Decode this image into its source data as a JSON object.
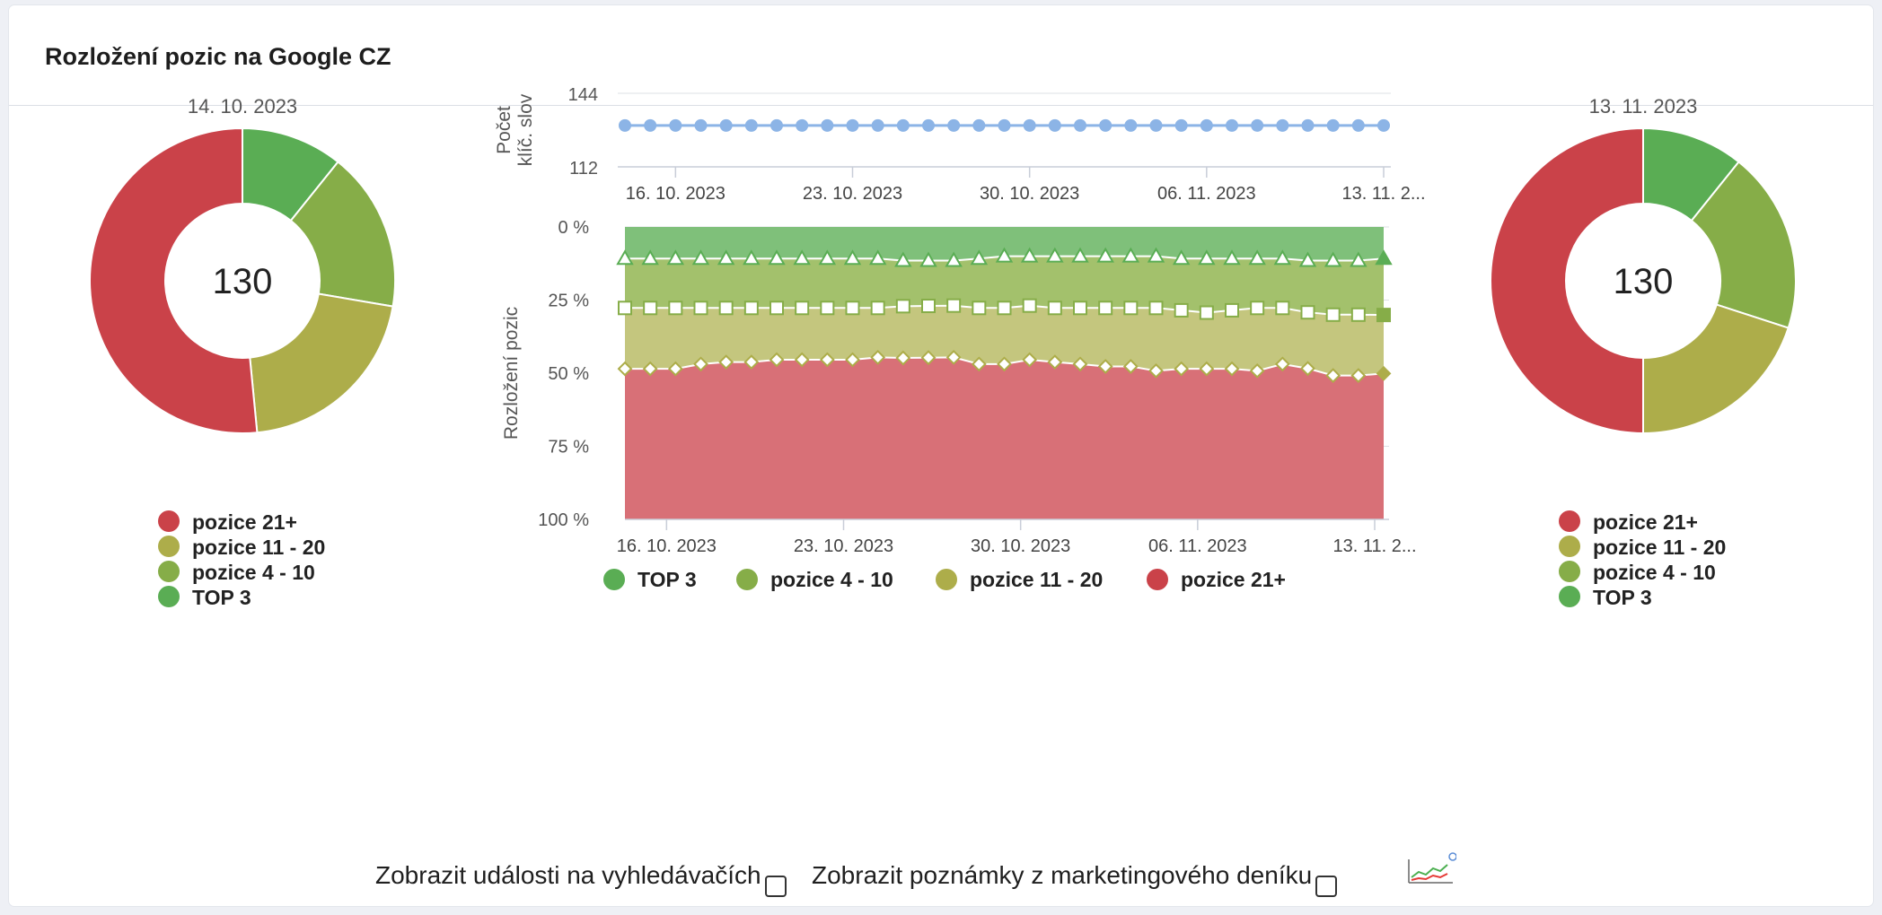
{
  "widget": {
    "title": "Rozložení pozic na Google CZ"
  },
  "colors": {
    "top3": "#5aad54",
    "pos4_10": "#86ad48",
    "pos11_20": "#adad4a",
    "pos21": "#ca4249",
    "keyword_line": "#8cb4e6",
    "area_top3": "#7fc07a",
    "area_4_10": "#a3c16c",
    "area_11_20": "#c4c67e",
    "area_21": "#d87077"
  },
  "chart_data": [
    {
      "type": "pie",
      "variant": "donut",
      "title": "14. 10. 2023",
      "center_label": "130",
      "slices": [
        {
          "name": "TOP 3",
          "value": 14
        },
        {
          "name": "pozice 4 - 10",
          "value": 22
        },
        {
          "name": "pozice 11 - 20",
          "value": 27
        },
        {
          "name": "pozice 21+",
          "value": 67
        }
      ],
      "legend": [
        "pozice 21+",
        "pozice 11 - 20",
        "pozice 4 - 10",
        "TOP 3"
      ]
    },
    {
      "type": "line",
      "title": "",
      "ylabel": "Počet klíč. slov",
      "ylim": [
        112,
        144
      ],
      "yticks": [
        "112",
        "144"
      ],
      "xticks": [
        "16. 10. 2023",
        "23. 10. 2023",
        "30. 10. 2023",
        "06. 11. 2023",
        "13. 11. 2..."
      ],
      "x_start_label": "14. 10. 2023",
      "series": [
        {
          "values": [
            130,
            130,
            130,
            130,
            130,
            130,
            130,
            130,
            130,
            130,
            130,
            130,
            130,
            130,
            130,
            130,
            130,
            130,
            130,
            130,
            130,
            130,
            130,
            130,
            130,
            130,
            130,
            130,
            130,
            130,
            130
          ]
        }
      ]
    },
    {
      "type": "area",
      "stacked": "percent",
      "title": "",
      "ylabel": "Rozložení pozic",
      "yticks": [
        "0 %",
        "25 %",
        "50 %",
        "75 %",
        "100 %"
      ],
      "xticks": [
        "16. 10. 2023",
        "23. 10. 2023",
        "30. 10. 2023",
        "06. 11. 2023",
        "13. 11. 2..."
      ],
      "legend_placement": "bottom",
      "series": [
        {
          "name": "TOP 3",
          "values": [
            10.8,
            10.8,
            10.8,
            10.8,
            10.8,
            10.8,
            10.8,
            10.8,
            10.8,
            10.8,
            10.8,
            11.5,
            11.5,
            11.5,
            10.8,
            10.0,
            10.0,
            10.0,
            10.0,
            10.0,
            10.0,
            10.0,
            10.8,
            10.8,
            10.8,
            10.8,
            10.8,
            11.5,
            11.5,
            11.5,
            10.8
          ]
        },
        {
          "name": "pozice 4 - 10",
          "values": [
            16.9,
            16.9,
            16.9,
            16.9,
            16.9,
            16.9,
            16.9,
            16.9,
            16.9,
            16.9,
            16.9,
            15.6,
            15.5,
            15.4,
            16.9,
            17.7,
            16.9,
            17.7,
            17.7,
            17.7,
            17.7,
            17.7,
            17.7,
            18.5,
            17.7,
            16.9,
            16.9,
            17.7,
            18.5,
            18.5,
            19.3
          ]
        },
        {
          "name": "pozice 11 - 20",
          "values": [
            20.8,
            20.8,
            20.8,
            19.2,
            18.5,
            18.5,
            17.7,
            17.7,
            17.7,
            17.7,
            16.9,
            17.7,
            17.7,
            17.7,
            19.2,
            19.2,
            18.5,
            18.5,
            19.2,
            20.0,
            20.0,
            21.5,
            20.0,
            19.2,
            20.0,
            21.5,
            19.2,
            19.2,
            20.8,
            20.8,
            20.0
          ]
        },
        {
          "name": "pozice 21+",
          "values": [
            51.5,
            51.5,
            51.5,
            53.1,
            53.8,
            53.8,
            54.6,
            54.6,
            54.6,
            54.6,
            55.4,
            55.2,
            55.3,
            55.4,
            53.1,
            53.1,
            54.6,
            53.8,
            53.1,
            52.3,
            52.3,
            50.8,
            51.5,
            51.5,
            51.5,
            50.8,
            53.1,
            51.6,
            49.2,
            49.2,
            49.9
          ]
        }
      ],
      "legend": [
        "TOP 3",
        "pozice 4 - 10",
        "pozice 11 - 20",
        "pozice 21+"
      ]
    },
    {
      "type": "pie",
      "variant": "donut",
      "title": "13. 11. 2023",
      "center_label": "130",
      "slices": [
        {
          "name": "TOP 3",
          "value": 14
        },
        {
          "name": "pozice 4 - 10",
          "value": 25
        },
        {
          "name": "pozice 11 - 20",
          "value": 26
        },
        {
          "name": "pozice 21+",
          "value": 65
        }
      ],
      "legend": [
        "pozice 21+",
        "pozice 11 - 20",
        "pozice 4 - 10",
        "TOP 3"
      ]
    }
  ],
  "footer": {
    "show_events_label": "Zobrazit události na vyhledávačích",
    "show_events_checked": false,
    "show_notes_label": "Zobrazit poznámky z marketingového deníku",
    "show_notes_checked": false,
    "chart_icon": "chart-settings-icon"
  }
}
